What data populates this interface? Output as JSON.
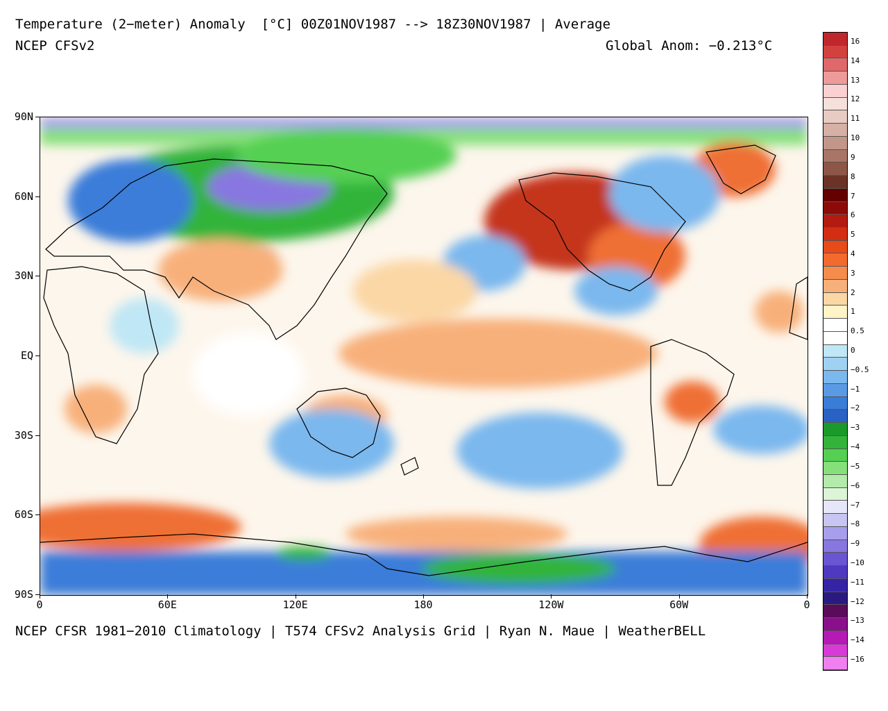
{
  "header": {
    "title": "Temperature (2−meter) Anomaly  [°C] 00Z01NOV1987 --> 18Z30NOV1987 | Average",
    "subtitle": "NCEP CFSv2",
    "global_anom": "Global Anom: −0.213°C"
  },
  "footer": {
    "credit": "NCEP CFSR 1981−2010 Climatology | T574 CFSv2 Analysis Grid | Ryan N. Maue | WeatherBELL"
  },
  "axes": {
    "lat_labels": [
      "90N",
      "60N",
      "30N",
      "EQ",
      "30S",
      "60S",
      "90S"
    ],
    "lon_labels": [
      "0",
      "60E",
      "120E",
      "180",
      "120W",
      "60W",
      "0"
    ]
  },
  "colorbar": {
    "labels": [
      "16",
      "14",
      "13",
      "12",
      "11",
      "10",
      "9",
      "8",
      "7",
      "6",
      "5",
      "4",
      "3",
      "2",
      "1",
      "0.5",
      "0",
      "−0.5",
      "−1",
      "−2",
      "−3",
      "−4",
      "−5",
      "−6",
      "−7",
      "−8",
      "−9",
      "−10",
      "−11",
      "−12",
      "−13",
      "−14",
      "−16"
    ],
    "colors": [
      "#c0272d",
      "#d3413f",
      "#e0676a",
      "#ef9a9a",
      "#fbd0d0",
      "#f6e0dc",
      "#e8cbc3",
      "#d6b0a5",
      "#c2978a",
      "#a97567",
      "#8d5646",
      "#6b3327",
      "#650000",
      "#8c0b08",
      "#b51a10",
      "#d22f12",
      "#e84a1a",
      "#f36a2e",
      "#f58c4c",
      "#f8b07a",
      "#fbd7a6",
      "#fff3c8",
      "#ffffff",
      "#ffffff",
      "#bfe7f5",
      "#9fd2f2",
      "#7ab8ee",
      "#5a9ae5",
      "#3a7dd9",
      "#2a62c4",
      "#1a9a2b",
      "#32b43a",
      "#55d052",
      "#86e07a",
      "#b3ebaa",
      "#dbf5d6",
      "#e6e6fa",
      "#c8c5f3",
      "#a79eec",
      "#8877e0",
      "#6a55d2",
      "#4e39c0",
      "#3525a5",
      "#2a1a80",
      "#5a0b5a",
      "#8a0f8a",
      "#b51ab5",
      "#d83ad8",
      "#f07ff0"
    ]
  },
  "map_colors": {
    "ocean_base": "#fdf6ec",
    "warm_light": "#fbd7a6",
    "warm": "#f8b07a",
    "warm_strong": "#ef7036",
    "hot": "#c4341a",
    "cool_light": "#bfe7f5",
    "cool": "#7ab8ee",
    "cool_strong": "#3a7dd9",
    "cold_green": "#32b43a",
    "cold_green_light": "#86e07a",
    "cold_purple": "#8877e0",
    "coast": "#000000"
  }
}
